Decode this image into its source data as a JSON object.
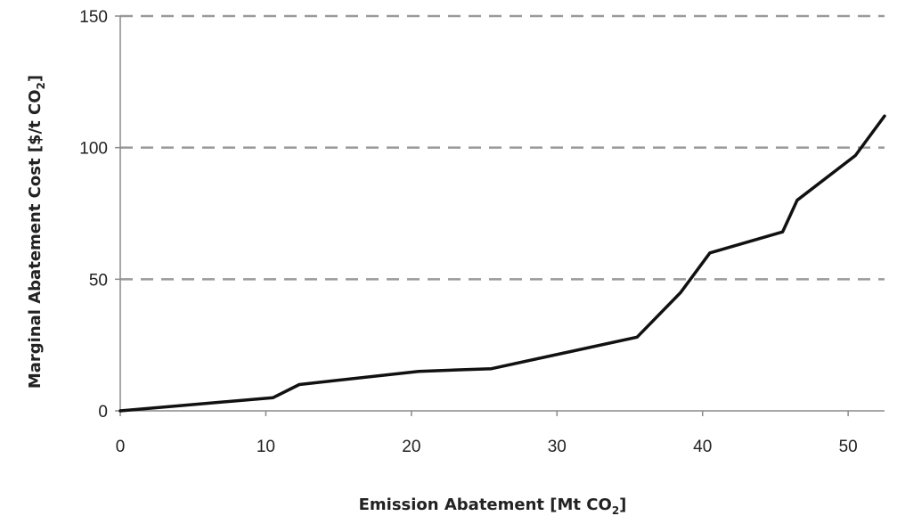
{
  "chart_data": {
    "type": "line",
    "xlabel": "Emission Abatement [Mt CO",
    "xlabel_sub": "2",
    "xlabel_end": "]",
    "ylabel": "Marginal Abatement Cost [$/t CO",
    "ylabel_sub": "2",
    "ylabel_end": "]",
    "xlim": [
      0,
      52.5
    ],
    "ylim": [
      0,
      150
    ],
    "xticks": [
      0,
      10,
      20,
      30,
      40,
      50
    ],
    "yticks": [
      0,
      50,
      100,
      150
    ],
    "grid": "horizontal dashed",
    "series": [
      {
        "color": "#111111",
        "points": [
          [
            0,
            0
          ],
          [
            10.5,
            5
          ],
          [
            12.3,
            10
          ],
          [
            20.5,
            15
          ],
          [
            25.5,
            16
          ],
          [
            35.5,
            28
          ],
          [
            38.5,
            45
          ],
          [
            40.5,
            60
          ],
          [
            45.5,
            68
          ],
          [
            46.5,
            80
          ],
          [
            50.5,
            97
          ],
          [
            52.5,
            112
          ]
        ]
      }
    ]
  }
}
